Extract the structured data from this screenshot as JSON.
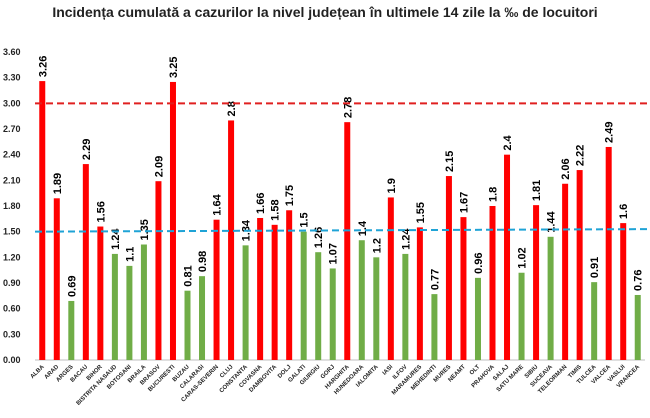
{
  "chart_data": {
    "type": "bar",
    "title": "Incidența cumulată a cazurilor la nivel județean în ultimele 14 zile la ‰ de locuitori",
    "xlabel": "",
    "ylabel": "",
    "ylim": [
      0,
      3.6
    ],
    "yticks": [
      "0.00",
      "0.30",
      "0.60",
      "0.90",
      "1.20",
      "1.50",
      "1.80",
      "2.10",
      "2.40",
      "2.70",
      "3.00",
      "3.30",
      "3.60"
    ],
    "grid": false,
    "categories": [
      "ALBA",
      "ARAD",
      "ARGES",
      "BACAU",
      "BIHOR",
      "BISTRITA NASAUD",
      "BOTOSANI",
      "BRAILA",
      "BRASOV",
      "BUCURESTI",
      "BUZAU",
      "CALARASI",
      "CARAS-SEVERIN",
      "CLUJ",
      "CONSTANTA",
      "COVASNA",
      "DAMBOVITA",
      "DOLJ",
      "GALATI",
      "GIURGIU",
      "GORJ",
      "HARGHITA",
      "HUNEDOARA",
      "IALOMITA",
      "IASI",
      "ILFOV",
      "MARAMURES",
      "MEHEDINTI",
      "MURES",
      "NEAMT",
      "OLT",
      "PRAHOVA",
      "SALAJ",
      "SATU MARE",
      "SIBIU",
      "SUCEAVA",
      "TELEORMAN",
      "TIMIS",
      "TULCEA",
      "VALCEA",
      "VASLUI",
      "VRANCEA"
    ],
    "values": [
      3.26,
      1.89,
      0.69,
      2.29,
      1.56,
      1.24,
      1.1,
      1.35,
      2.09,
      3.25,
      0.81,
      0.98,
      1.64,
      2.8,
      1.34,
      1.66,
      1.58,
      1.75,
      1.5,
      1.26,
      1.07,
      2.78,
      1.4,
      1.2,
      1.9,
      1.24,
      1.55,
      0.77,
      2.15,
      1.67,
      0.96,
      1.8,
      2.4,
      1.02,
      1.81,
      1.44,
      2.06,
      2.22,
      0.91,
      2.49,
      1.6,
      0.76
    ],
    "value_labels": [
      "3.26",
      "1.89",
      "0.69",
      "2.29",
      "1.56",
      "1.24",
      "1.1",
      "1.35",
      "2.09",
      "3.25",
      "0.81",
      "0.98",
      "1.64",
      "2.8",
      "1.34",
      "1.66",
      "1.58",
      "1.75",
      "1.5",
      "1.26",
      "1.07",
      "2.78",
      "1.4",
      "1.2",
      "1.9",
      "1.24",
      "1.55",
      "0.77",
      "2.15",
      "1.67",
      "0.96",
      "1.8",
      "2.4",
      "1.02",
      "1.81",
      "1.44",
      "2.06",
      "2.22",
      "0.91",
      "2.49",
      "1.6",
      "0.76"
    ],
    "thresholds": [
      {
        "value": 3.0,
        "color": "#e02020",
        "style": "dashed"
      },
      {
        "value": 1.5,
        "color": "#1fa3d6",
        "style": "dashed",
        "slope_end": 1.53
      }
    ],
    "colors": {
      "above": "#ff0000",
      "below": "#70ad47"
    }
  }
}
